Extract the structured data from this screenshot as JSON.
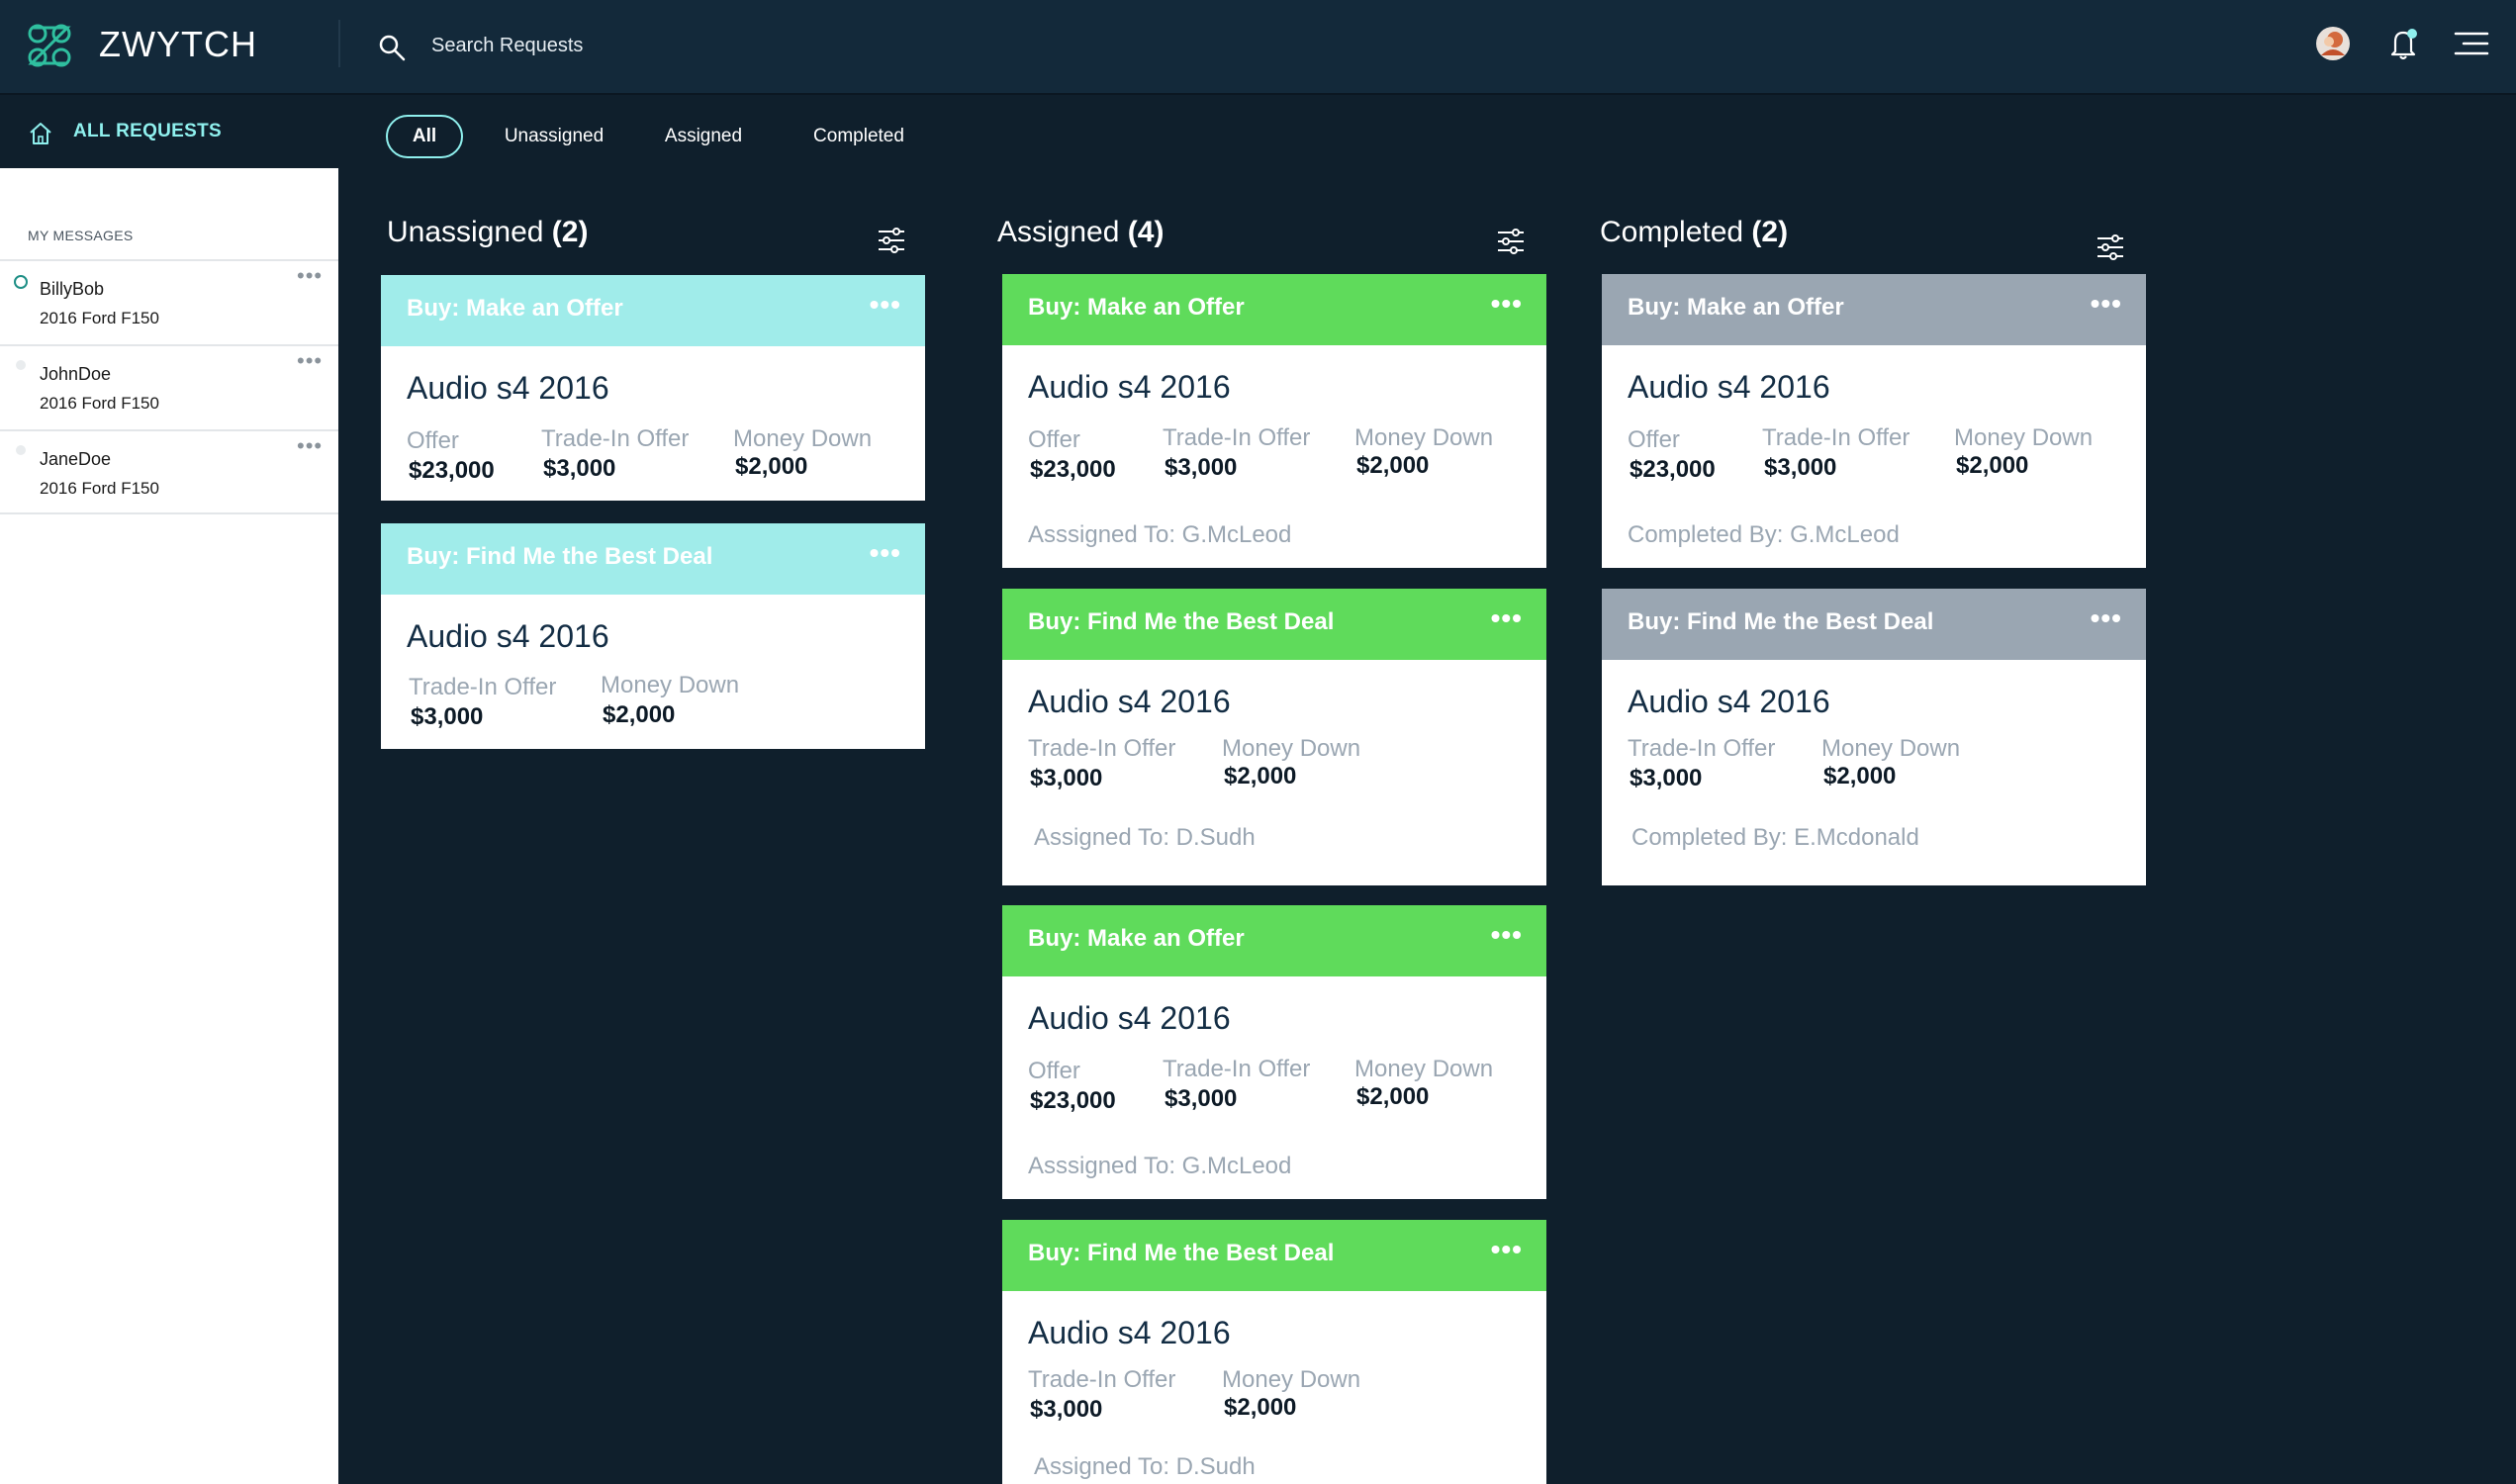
{
  "app": {
    "brand": "ZWYTCH"
  },
  "search": {
    "placeholder": "Search Requests"
  },
  "sidebar": {
    "all_requests": "ALL REQUESTS",
    "section_title": "MY MESSAGES",
    "messages": [
      {
        "name": "BillyBob",
        "vehicle": "2016 Ford F150",
        "status": "unread"
      },
      {
        "name": "JohnDoe",
        "vehicle": "2016 Ford F150",
        "status": "read"
      },
      {
        "name": "JaneDoe",
        "vehicle": "2016 Ford F150",
        "status": "read"
      }
    ]
  },
  "tabs": [
    {
      "label": "All",
      "active": true
    },
    {
      "label": "Unassigned",
      "active": false
    },
    {
      "label": "Assigned",
      "active": false
    },
    {
      "label": "Completed",
      "active": false
    }
  ],
  "colors": {
    "accent": "#8ff0ee",
    "unassigned_header": "#a0ecea",
    "assigned_header": "#5fdb5b",
    "completed_header": "#9aa6b2",
    "background": "#0f1f2c"
  },
  "columns": [
    {
      "title": "Unassigned",
      "count": "(2)",
      "cards": [
        {
          "type": "Buy: Make an Offer",
          "car": "Audio s4 2016",
          "fields": [
            {
              "label": "Offer",
              "value": "$23,000"
            },
            {
              "label": "Trade-In Offer",
              "value": "$3,000"
            },
            {
              "label": "Money Down",
              "value": "$2,000"
            }
          ]
        },
        {
          "type": "Buy: Find Me the Best Deal",
          "car": "Audio s4 2016",
          "fields": [
            {
              "label": "Trade-In Offer",
              "value": "$3,000"
            },
            {
              "label": "Money Down",
              "value": "$2,000"
            }
          ]
        }
      ]
    },
    {
      "title": "Assigned",
      "count": "(4)",
      "cards": [
        {
          "type": "Buy: Make an Offer",
          "car": "Audio s4 2016",
          "fields": [
            {
              "label": "Offer",
              "value": "$23,000"
            },
            {
              "label": "Trade-In Offer",
              "value": "$3,000"
            },
            {
              "label": "Money Down",
              "value": "$2,000"
            }
          ],
          "footer": "Asssigned To: G.McLeod"
        },
        {
          "type": "Buy: Find Me the Best Deal",
          "car": "Audio s4 2016",
          "fields": [
            {
              "label": "Trade-In Offer",
              "value": "$3,000"
            },
            {
              "label": "Money Down",
              "value": "$2,000"
            }
          ],
          "footer": "Assigned To: D.Sudh"
        },
        {
          "type": "Buy: Make an Offer",
          "car": "Audio s4 2016",
          "fields": [
            {
              "label": "Offer",
              "value": "$23,000"
            },
            {
              "label": "Trade-In Offer",
              "value": "$3,000"
            },
            {
              "label": "Money Down",
              "value": "$2,000"
            }
          ],
          "footer": "Asssigned To: G.McLeod"
        },
        {
          "type": "Buy: Find Me the Best Deal",
          "car": "Audio s4 2016",
          "fields": [
            {
              "label": "Trade-In Offer",
              "value": "$3,000"
            },
            {
              "label": "Money Down",
              "value": "$2,000"
            }
          ],
          "footer": "Assigned To: D.Sudh"
        }
      ]
    },
    {
      "title": "Completed",
      "count": "(2)",
      "cards": [
        {
          "type": "Buy: Make an Offer",
          "car": "Audio s4 2016",
          "fields": [
            {
              "label": "Offer",
              "value": "$23,000"
            },
            {
              "label": "Trade-In Offer",
              "value": "$3,000"
            },
            {
              "label": "Money Down",
              "value": "$2,000"
            }
          ],
          "footer": "Completed By: G.McLeod"
        },
        {
          "type": "Buy: Find Me the Best Deal",
          "car": "Audio s4 2016",
          "fields": [
            {
              "label": "Trade-In Offer",
              "value": "$3,000"
            },
            {
              "label": "Money Down",
              "value": "$2,000"
            }
          ],
          "footer": "Completed By: E.Mcdonald"
        }
      ]
    }
  ]
}
